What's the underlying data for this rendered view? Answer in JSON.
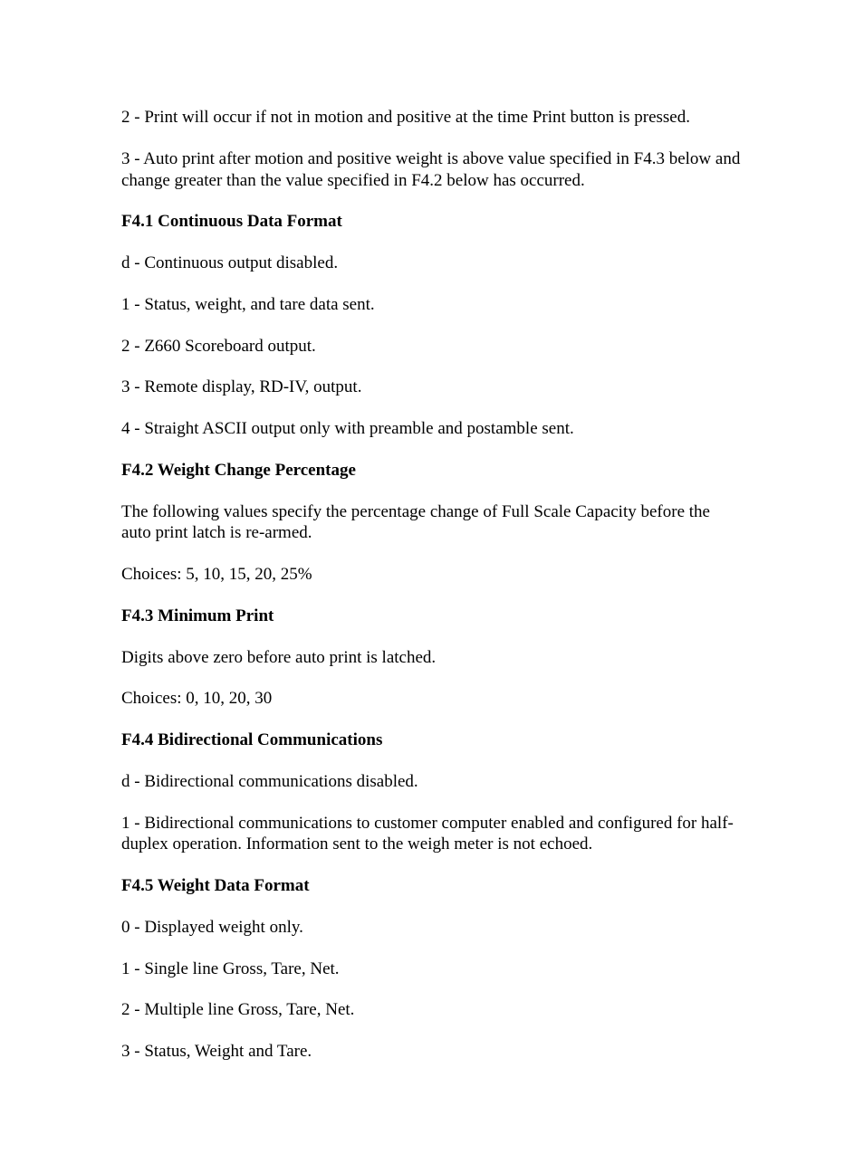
{
  "typography": {
    "font_family": "Times New Roman",
    "font_size_pt": 14,
    "heading_weight": "bold",
    "text_color": "#000000",
    "background_color": "#ffffff"
  },
  "intro": {
    "p1": "2 - Print will occur if not in motion and positive at the time Print button is pressed.",
    "p2": "3 - Auto print after motion and positive weight is above value specified in F4.3 below and change greater than the value specified in F4.2 below has occurred."
  },
  "sections": {
    "s1": {
      "heading": "F4.1 Continuous Data Format",
      "p1": "d - Continuous output disabled.",
      "p2": "1 - Status, weight, and tare data sent.",
      "p3": "2 - Z660 Scoreboard output.",
      "p4": "3 - Remote display, RD-IV, output.",
      "p5": "4 - Straight ASCII output only with preamble and postamble sent."
    },
    "s2": {
      "heading": "F4.2 Weight Change Percentage",
      "p1": "The following values specify the percentage change of Full Scale Capacity before the auto print latch is re-armed.",
      "p2": "Choices: 5, 10, 15, 20, 25%"
    },
    "s3": {
      "heading": "F4.3 Minimum Print",
      "p1": "Digits above zero before auto print is latched.",
      "p2": "Choices: 0, 10, 20, 30"
    },
    "s4": {
      "heading": "F4.4 Bidirectional Communications",
      "p1": "d - Bidirectional communications disabled.",
      "p2": "1 - Bidirectional communications to customer computer enabled and configured for half-duplex operation. Information sent to the weigh meter is not echoed."
    },
    "s5": {
      "heading": "F4.5 Weight Data Format",
      "p1": "0 - Displayed weight only.",
      "p2": "1 - Single line Gross, Tare, Net.",
      "p3": "2 - Multiple line Gross, Tare, Net.",
      "p4": "3 - Status, Weight and Tare."
    }
  }
}
